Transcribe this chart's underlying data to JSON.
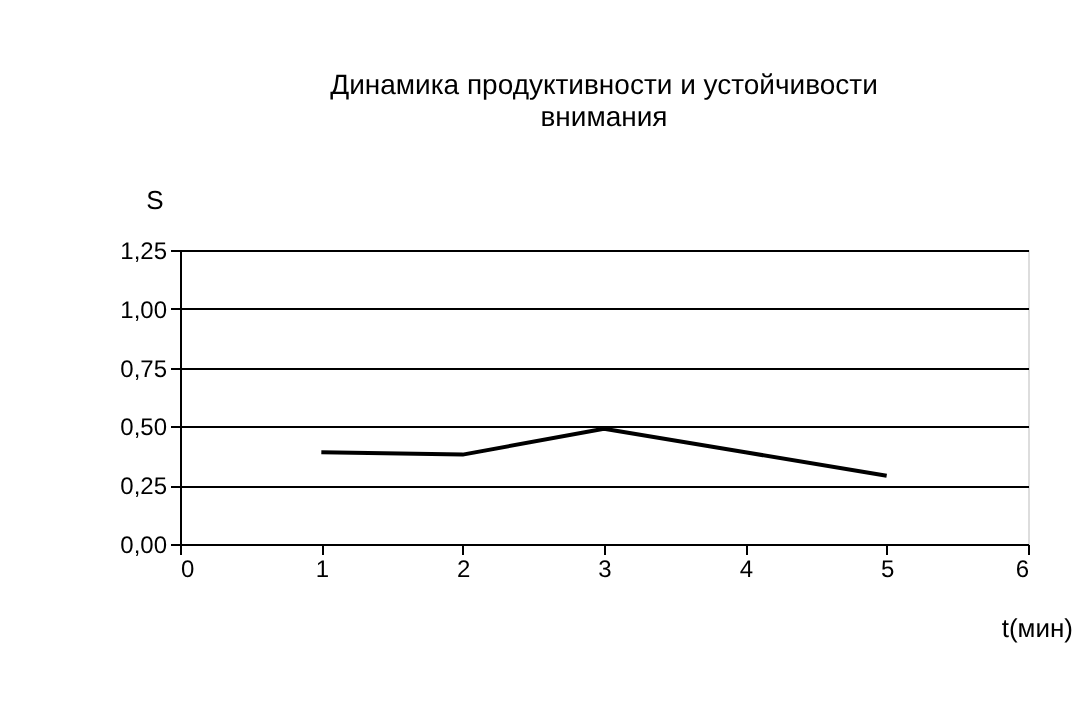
{
  "chart_data": {
    "type": "line",
    "title": "Динамика продуктивности и устойчивости\nвнимания",
    "xlabel": "t(мин)",
    "ylabel": "S",
    "x": [
      1,
      2,
      3,
      4,
      5
    ],
    "series": [
      {
        "color": "#000000",
        "values": [
          0.39,
          0.38,
          0.49,
          0.39,
          0.29
        ]
      }
    ],
    "xlim": [
      0,
      6
    ],
    "xticks": [
      0,
      1,
      2,
      3,
      4,
      5,
      6
    ],
    "ylim": [
      0,
      1.25
    ],
    "yticks": [
      {
        "value": 0,
        "label": "0,00"
      },
      {
        "value": 0.25,
        "label": "0,25"
      },
      {
        "value": 0.5,
        "label": "0,50"
      },
      {
        "value": 0.75,
        "label": "0,75"
      },
      {
        "value": 1.0,
        "label": "1,00"
      },
      {
        "value": 1.25,
        "label": "1,25"
      }
    ],
    "grid": "y",
    "marker": "none",
    "line_style": "solid"
  }
}
